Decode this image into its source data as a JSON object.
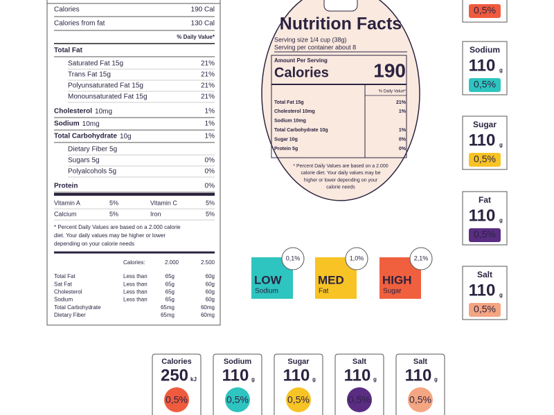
{
  "label": {
    "top_rows": [
      {
        "name": "Calories",
        "value": "190 Cal"
      },
      {
        "name": "Calories from fat",
        "value": "130 Cal"
      }
    ],
    "dv_header": "% Daily Value*",
    "nutrients": [
      {
        "name": "Total Fat",
        "sub": [
          {
            "name": "Saturated Fat 15g",
            "dv": "21%"
          },
          {
            "name": "Trans Fat 15g",
            "dv": "21%"
          },
          {
            "name": "Polyunsaturated Fat 15g",
            "dv": "21%"
          },
          {
            "name": "Monounsaturated Fat 15g",
            "dv": "21%"
          }
        ]
      },
      {
        "name": "Cholesterol",
        "amount": "10mg",
        "dv": "1%"
      },
      {
        "name": "Sodium",
        "amount": "10mg",
        "dv": "1%"
      },
      {
        "name": "Total Carbohydrate",
        "amount": "10g",
        "dv": "1%",
        "sub": [
          {
            "name": "Dietary Fiber 5g"
          },
          {
            "name": "Sugars 5g",
            "dv": "0%"
          },
          {
            "name": "Polyalcohols 5g",
            "dv": "0%"
          }
        ]
      },
      {
        "name": "Protein",
        "dv": "0%"
      }
    ],
    "vitamins": [
      [
        {
          "name": "Vitamin  A",
          "value": "5%"
        },
        {
          "name": "Vitamin  C",
          "value": "5%"
        }
      ],
      [
        {
          "name": "Calcium",
          "value": "5%"
        },
        {
          "name": "Iron",
          "value": "5%"
        }
      ]
    ],
    "footnote": [
      "* Percent Daily Values are based on a 2.000 calorie",
      "diet. Your daily values may be higher or lower",
      "depending on your calorie needs"
    ],
    "table": {
      "header": [
        "Calories:",
        "2.000",
        "2.500"
      ],
      "rows": [
        {
          "name": "Total Fat",
          "limit": "Less than",
          "a": "65g",
          "b": "60g"
        },
        {
          "name": "Sat Fat",
          "limit": "Less than",
          "a": "65g",
          "b": "60g"
        },
        {
          "name": "Cholesterol",
          "limit": "Less than",
          "a": "65g",
          "b": "60g"
        },
        {
          "name": "Sodium",
          "limit": "Less than",
          "a": "65g",
          "b": "60g"
        },
        {
          "name": "Total Carbohydrate",
          "a": "65mg",
          "b": "60mg"
        },
        {
          "name": "Dietary Fiber",
          "a": "65mg",
          "b": "60mg"
        }
      ]
    }
  },
  "oval": {
    "title": "Nutrition Facts",
    "serving": [
      "Serving size 1/4 cup (38g)",
      "Serving per container about 8"
    ],
    "amount_label": "Amount Per Serving",
    "calories_label": "Calories",
    "calories": "190",
    "dv_header": "% Daily Value*",
    "rows": [
      {
        "name": "Total Fat 15g",
        "dv": "21%"
      },
      {
        "name": "Cholesterol 10mg",
        "dv": "1%"
      },
      {
        "name": "Sodium 10mg"
      },
      {
        "name": "Total Carbohydrate 10g",
        "dv": "1%"
      },
      {
        "name": "Sugar 10g",
        "dv": "0%"
      },
      {
        "name": "Protein 5g",
        "dv": "0%"
      }
    ],
    "footnote": [
      "* Percent Daily Values are based on a 2.000",
      "calorie diet. Your daily values may be",
      "higher or lower depending on your",
      "calorie needs"
    ]
  },
  "side_badges": [
    {
      "percent": "0,5%",
      "color": "#ef5b3e"
    },
    {
      "name": "Sodium",
      "value": "110",
      "unit": "g",
      "percent": "0,5%",
      "color": "#2ec4c0"
    },
    {
      "name": "Sugar",
      "value": "110",
      "unit": "g",
      "percent": "0,5%",
      "color": "#f7c325"
    },
    {
      "name": "Fat",
      "value": "110",
      "unit": "g",
      "percent": "0,5%",
      "color": "#5a2d82"
    },
    {
      "name": "Salt",
      "value": "110",
      "unit": "g",
      "percent": "0,5%",
      "color": "#f4a582"
    }
  ],
  "levels": [
    {
      "level": "LOW",
      "nutrient": "Sodium",
      "percent": "0,1%",
      "color": "#2ec4c0"
    },
    {
      "level": "MED",
      "nutrient": "Fat",
      "percent": "1,0%",
      "color": "#f7c325"
    },
    {
      "level": "HIGH",
      "nutrient": "Sugar",
      "percent": "2,1%",
      "color": "#f0603e"
    }
  ],
  "bottom_badges": [
    {
      "name": "Calories",
      "value": "250",
      "unit": "kJ",
      "percent": "0,5%",
      "color": "#ef5b3e"
    },
    {
      "name": "Sodium",
      "value": "110",
      "unit": "g",
      "percent": "0,5%",
      "color": "#2ec4c0"
    },
    {
      "name": "Sugar",
      "value": "110",
      "unit": "g",
      "percent": "0,5%",
      "color": "#f7c325"
    },
    {
      "name": "Salt",
      "value": "110",
      "unit": "g",
      "percent": "0,5%",
      "color": "#5a2d82"
    },
    {
      "name": "Salt",
      "value": "110",
      "unit": "g",
      "percent": "0,5%",
      "color": "#f4a582"
    }
  ]
}
